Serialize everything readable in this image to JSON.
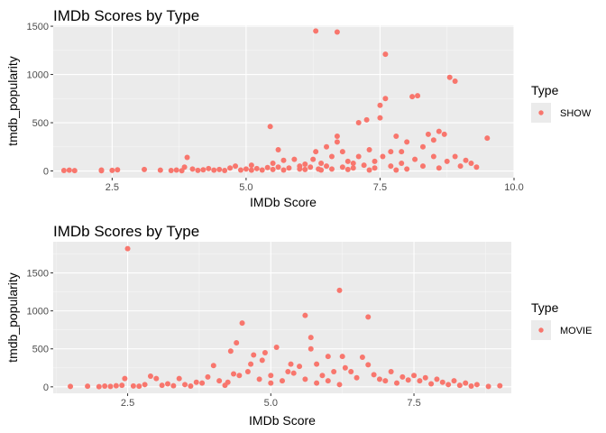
{
  "chart_data": [
    {
      "type": "scatter",
      "title": "IMDb Scores by Type",
      "xlabel": "IMDb Score",
      "ylabel": "tmdb_popularity",
      "xlim": [
        1.4,
        10.0
      ],
      "ylim": [
        -70,
        1510
      ],
      "x_ticks": [
        2.5,
        5.0,
        7.5,
        10.0
      ],
      "x_tick_labels": [
        "2.5",
        "5.0",
        "7.5",
        "10.0"
      ],
      "y_ticks": [
        0,
        500,
        1000,
        1500
      ],
      "y_tick_labels": [
        "0",
        "500",
        "1000",
        "1500"
      ],
      "grid": true,
      "legend_placement": "right",
      "legend_title": "Type",
      "series": [
        {
          "name": "SHOW",
          "color": "#f8766d",
          "points": [
            [
              1.6,
              5
            ],
            [
              1.7,
              8
            ],
            [
              1.8,
              4
            ],
            [
              2.3,
              10
            ],
            [
              2.3,
              3
            ],
            [
              2.5,
              6
            ],
            [
              2.6,
              12
            ],
            [
              3.1,
              15
            ],
            [
              3.4,
              8
            ],
            [
              3.6,
              5
            ],
            [
              3.7,
              10
            ],
            [
              3.8,
              3
            ],
            [
              3.85,
              40
            ],
            [
              3.9,
              140
            ],
            [
              4.0,
              20
            ],
            [
              4.1,
              6
            ],
            [
              4.2,
              12
            ],
            [
              4.3,
              25
            ],
            [
              4.4,
              8
            ],
            [
              4.5,
              15
            ],
            [
              4.6,
              5
            ],
            [
              4.7,
              30
            ],
            [
              4.8,
              50
            ],
            [
              4.9,
              10
            ],
            [
              5.0,
              20
            ],
            [
              5.1,
              8
            ],
            [
              5.1,
              60
            ],
            [
              5.2,
              25
            ],
            [
              5.3,
              10
            ],
            [
              5.4,
              35
            ],
            [
              5.45,
              460
            ],
            [
              5.5,
              15
            ],
            [
              5.5,
              80
            ],
            [
              5.6,
              40
            ],
            [
              5.6,
              220
            ],
            [
              5.7,
              10
            ],
            [
              5.7,
              110
            ],
            [
              5.8,
              30
            ],
            [
              5.9,
              120
            ],
            [
              6.0,
              50
            ],
            [
              6.0,
              20
            ],
            [
              6.1,
              15
            ],
            [
              6.1,
              70
            ],
            [
              6.2,
              40
            ],
            [
              6.25,
              120
            ],
            [
              6.3,
              200
            ],
            [
              6.3,
              1450
            ],
            [
              6.35,
              20
            ],
            [
              6.4,
              80
            ],
            [
              6.4,
              10
            ],
            [
              6.5,
              50
            ],
            [
              6.5,
              250
            ],
            [
              6.6,
              150
            ],
            [
              6.6,
              20
            ],
            [
              6.7,
              300
            ],
            [
              6.7,
              360
            ],
            [
              6.7,
              1440
            ],
            [
              6.8,
              40
            ],
            [
              6.8,
              200
            ],
            [
              6.9,
              100
            ],
            [
              6.9,
              15
            ],
            [
              7.0,
              80
            ],
            [
              7.0,
              30
            ],
            [
              7.1,
              500
            ],
            [
              7.1,
              150
            ],
            [
              7.2,
              60
            ],
            [
              7.25,
              530
            ],
            [
              7.3,
              220
            ],
            [
              7.3,
              10
            ],
            [
              7.4,
              100
            ],
            [
              7.4,
              30
            ],
            [
              7.5,
              550
            ],
            [
              7.5,
              680
            ],
            [
              7.55,
              150
            ],
            [
              7.6,
              750
            ],
            [
              7.6,
              1210
            ],
            [
              7.7,
              50
            ],
            [
              7.7,
              200
            ],
            [
              7.8,
              360
            ],
            [
              7.8,
              10
            ],
            [
              7.9,
              80
            ],
            [
              7.9,
              200
            ],
            [
              8.0,
              300
            ],
            [
              8.0,
              20
            ],
            [
              8.1,
              770
            ],
            [
              8.15,
              120
            ],
            [
              8.2,
              780
            ],
            [
              8.3,
              250
            ],
            [
              8.3,
              50
            ],
            [
              8.4,
              380
            ],
            [
              8.5,
              320
            ],
            [
              8.5,
              150
            ],
            [
              8.6,
              410
            ],
            [
              8.6,
              30
            ],
            [
              8.7,
              380
            ],
            [
              8.75,
              100
            ],
            [
              8.8,
              970
            ],
            [
              8.9,
              930
            ],
            [
              8.9,
              150
            ],
            [
              9.0,
              50
            ],
            [
              9.1,
              110
            ],
            [
              9.2,
              80
            ],
            [
              9.3,
              40
            ],
            [
              9.5,
              340
            ]
          ]
        }
      ]
    },
    {
      "type": "scatter",
      "title": "IMDb Scores by Type",
      "xlabel": "IMDb Score",
      "ylabel": "tmdb_popularity",
      "xlim": [
        1.2,
        9.2
      ],
      "ylim": [
        -85,
        1910
      ],
      "x_ticks": [
        2.5,
        5.0,
        7.5
      ],
      "x_tick_labels": [
        "2.5",
        "5.0",
        "7.5"
      ],
      "y_ticks": [
        0,
        500,
        1000,
        1500
      ],
      "y_tick_labels": [
        "0",
        "500",
        "1000",
        "1500"
      ],
      "grid": true,
      "legend_placement": "right",
      "legend_title": "Type",
      "series": [
        {
          "name": "MOVIE",
          "color": "#f8766d",
          "points": [
            [
              1.5,
              5
            ],
            [
              1.8,
              8
            ],
            [
              2.0,
              3
            ],
            [
              2.1,
              10
            ],
            [
              2.2,
              6
            ],
            [
              2.3,
              15
            ],
            [
              2.4,
              20
            ],
            [
              2.45,
              110
            ],
            [
              2.5,
              1820
            ],
            [
              2.6,
              12
            ],
            [
              2.7,
              8
            ],
            [
              2.8,
              30
            ],
            [
              2.9,
              140
            ],
            [
              3.0,
              110
            ],
            [
              3.1,
              20
            ],
            [
              3.2,
              40
            ],
            [
              3.3,
              15
            ],
            [
              3.4,
              110
            ],
            [
              3.5,
              30
            ],
            [
              3.6,
              10
            ],
            [
              3.7,
              60
            ],
            [
              3.8,
              50
            ],
            [
              3.9,
              130
            ],
            [
              4.0,
              280
            ],
            [
              4.1,
              80
            ],
            [
              4.2,
              20
            ],
            [
              4.25,
              60
            ],
            [
              4.3,
              470
            ],
            [
              4.35,
              170
            ],
            [
              4.4,
              580
            ],
            [
              4.45,
              150
            ],
            [
              4.5,
              840
            ],
            [
              4.6,
              200
            ],
            [
              4.65,
              300
            ],
            [
              4.7,
              420
            ],
            [
              4.8,
              100
            ],
            [
              4.85,
              350
            ],
            [
              4.9,
              450
            ],
            [
              5.0,
              150
            ],
            [
              5.0,
              50
            ],
            [
              5.1,
              520
            ],
            [
              5.2,
              80
            ],
            [
              5.3,
              200
            ],
            [
              5.35,
              300
            ],
            [
              5.4,
              180
            ],
            [
              5.5,
              270
            ],
            [
              5.6,
              940
            ],
            [
              5.6,
              100
            ],
            [
              5.7,
              650
            ],
            [
              5.7,
              500
            ],
            [
              5.8,
              300
            ],
            [
              5.8,
              50
            ],
            [
              5.9,
              150
            ],
            [
              6.0,
              400
            ],
            [
              6.0,
              80
            ],
            [
              6.1,
              200
            ],
            [
              6.2,
              1270
            ],
            [
              6.2,
              30
            ],
            [
              6.25,
              400
            ],
            [
              6.3,
              250
            ],
            [
              6.4,
              200
            ],
            [
              6.5,
              120
            ],
            [
              6.6,
              390
            ],
            [
              6.7,
              920
            ],
            [
              6.7,
              290
            ],
            [
              6.8,
              160
            ],
            [
              6.9,
              100
            ],
            [
              7.0,
              80
            ],
            [
              7.1,
              200
            ],
            [
              7.2,
              50
            ],
            [
              7.3,
              130
            ],
            [
              7.4,
              90
            ],
            [
              7.5,
              150
            ],
            [
              7.6,
              80
            ],
            [
              7.7,
              120
            ],
            [
              7.8,
              40
            ],
            [
              7.9,
              100
            ],
            [
              8.0,
              60
            ],
            [
              8.1,
              30
            ],
            [
              8.2,
              80
            ],
            [
              8.3,
              20
            ],
            [
              8.4,
              50
            ],
            [
              8.5,
              10
            ],
            [
              8.6,
              30
            ],
            [
              8.8,
              5
            ],
            [
              9.0,
              15
            ]
          ]
        }
      ]
    }
  ],
  "legend_items": [
    {
      "title": "Type",
      "label": "SHOW"
    },
    {
      "title": "Type",
      "label": "MOVIE"
    }
  ]
}
